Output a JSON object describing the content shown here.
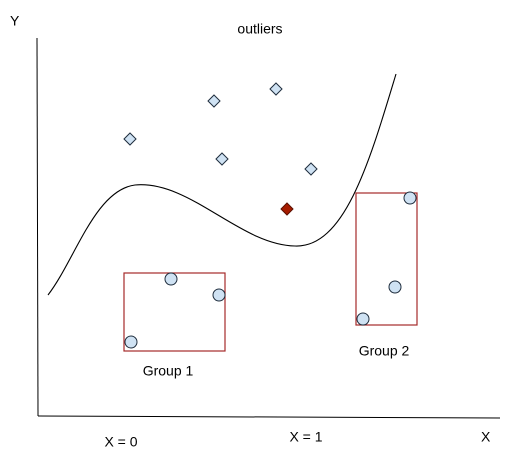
{
  "axes": {
    "y_label": "Y",
    "x_label": "X",
    "x_marks": [
      "X = 0",
      "X = 1"
    ]
  },
  "annotations": {
    "outliers": "outliers"
  },
  "groups": [
    {
      "label": "Group 1"
    },
    {
      "label": "Group 2"
    }
  ]
}
